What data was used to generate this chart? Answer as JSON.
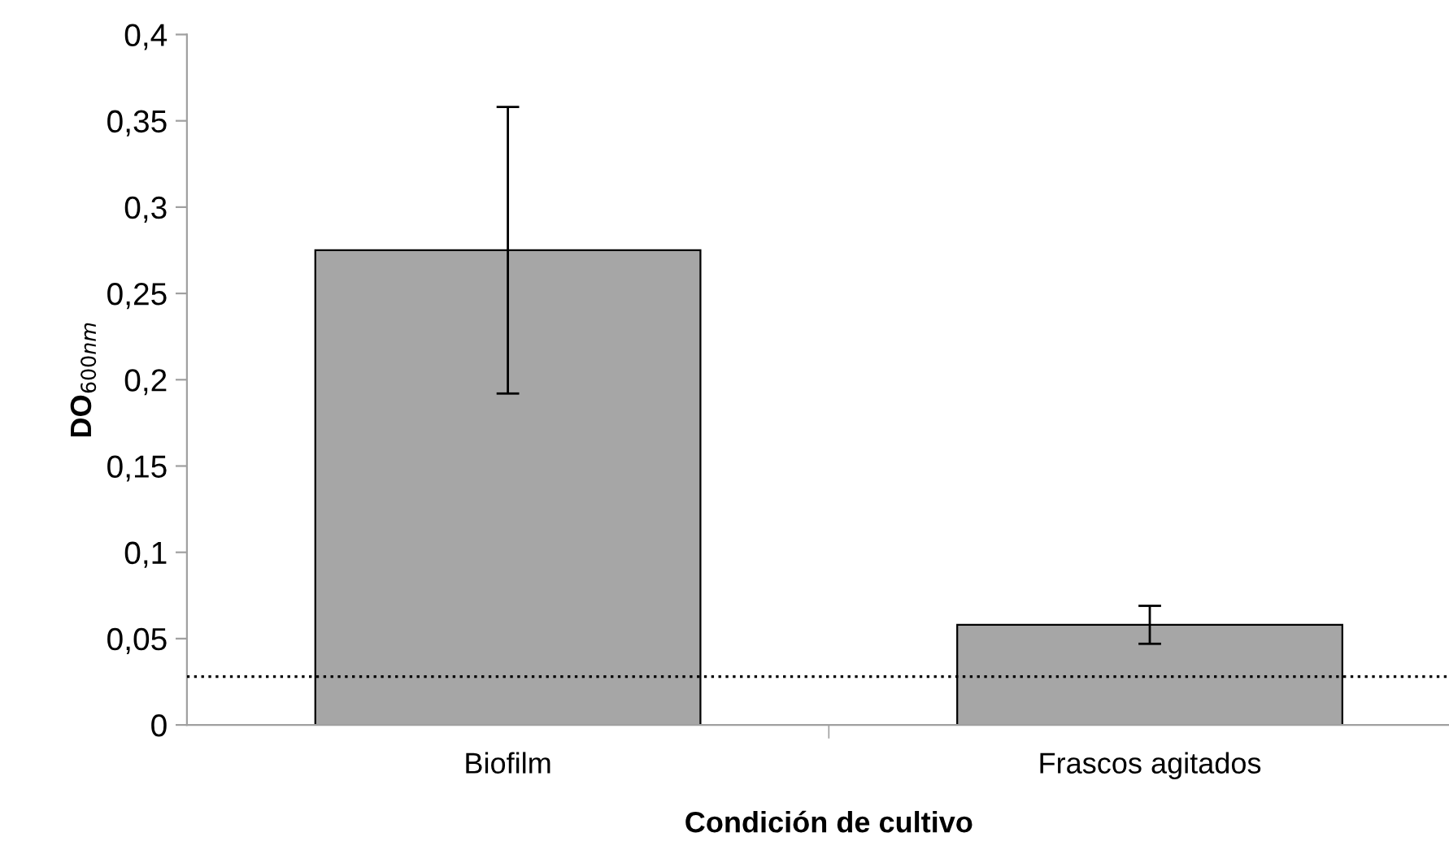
{
  "chart_data": {
    "type": "bar",
    "xlabel": "Condición de cultivo",
    "ylabel": "DO$_{600nm}$",
    "categories": [
      "Biofilm",
      "Frascos agitados"
    ],
    "values": [
      0.275,
      0.058
    ],
    "errors": [
      0.083,
      0.011
    ],
    "color": "#a6a6a6",
    "ylim": [
      0,
      0.4
    ],
    "yticks": [
      {
        "value": 0,
        "label": "0"
      },
      {
        "value": 0.05,
        "label": "0,05"
      },
      {
        "value": 0.1,
        "label": "0,1"
      },
      {
        "value": 0.15,
        "label": "0,15"
      },
      {
        "value": 0.2,
        "label": "0,2"
      },
      {
        "value": 0.25,
        "label": "0,25"
      },
      {
        "value": 0.3,
        "label": "0,3"
      },
      {
        "value": 0.35,
        "label": "0,35"
      },
      {
        "value": 0.4,
        "label": "0,4"
      }
    ],
    "ref_lines": [
      {
        "axis": "y",
        "value": 0.028,
        "color": "#000000",
        "line_style": "dotted"
      }
    ],
    "grid": false,
    "legend": false
  }
}
